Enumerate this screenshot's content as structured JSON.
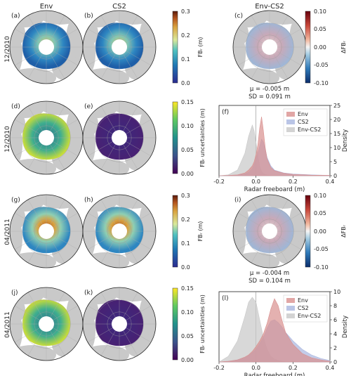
{
  "columns": {
    "env": "Env",
    "cs2": "CS2",
    "diff": "Env-CS2"
  },
  "rows": {
    "r1": "12/2010",
    "r2": "12/2010",
    "r3": "04/2011",
    "r4": "04/2011"
  },
  "panel_labels": {
    "a": "(a)",
    "b": "(b)",
    "c": "(c)",
    "d": "(d)",
    "e": "(e)",
    "f": "(f)",
    "g": "(g)",
    "h": "(h)",
    "i": "(i)",
    "j": "(j)",
    "k": "(k)",
    "l": "(l)"
  },
  "stats": {
    "c_mu": "μ = -0.005 m",
    "c_sd": "SD = 0.091 m",
    "i_mu": "μ = -0.004 m",
    "i_sd": "SD = 0.104 m"
  },
  "colorbars": {
    "fb": {
      "label": "FBᵣ (m)",
      "ticks": [
        "0.3",
        "0.2",
        "0.1",
        "0.0"
      ]
    },
    "unc": {
      "label": "FBᵣ uncertainties (m)",
      "ticks": [
        "0.15",
        "0.10",
        "0.05",
        "0.00"
      ]
    },
    "diff": {
      "label": "ΔFBᵣ",
      "ticks": [
        "0.10",
        "0.05",
        "0.00",
        "-0.05",
        "-0.10"
      ]
    }
  },
  "colors": {
    "env": "#d9908f",
    "cs2": "#a9b6e0",
    "diff": "#c8c8c8",
    "land": "#c9c9c9",
    "ocean": "#ffffff"
  },
  "chart_data": [
    {
      "type": "area",
      "panel": "(f)",
      "xlabel": "Radar freeboard (m)",
      "ylabel": "Density",
      "xlim": [
        -0.2,
        0.4
      ],
      "ylim": [
        0,
        25
      ],
      "xticks": [
        "-0.2",
        "0.0",
        "0.2",
        "0.4"
      ],
      "yticks": [
        "0",
        "5",
        "10",
        "15",
        "20",
        "25"
      ],
      "legend": [
        "Env",
        "CS2",
        "Env-CS2"
      ],
      "legend_position": "top-right",
      "x": [
        -0.2,
        -0.15,
        -0.1,
        -0.06,
        -0.04,
        -0.02,
        -0.01,
        0.0,
        0.01,
        0.02,
        0.03,
        0.04,
        0.05,
        0.06,
        0.08,
        0.1,
        0.15,
        0.2,
        0.3,
        0.4
      ],
      "series": [
        {
          "name": "Env",
          "values": [
            0,
            0.1,
            0.3,
            1.0,
            2.0,
            3.5,
            5.0,
            7.5,
            11,
            17,
            21,
            16,
            10,
            6,
            3,
            1.8,
            0.9,
            0.5,
            0.2,
            0.1
          ]
        },
        {
          "name": "CS2",
          "values": [
            0,
            0.1,
            0.2,
            0.6,
            1.2,
            2.5,
            4.0,
            6.0,
            8.0,
            10.5,
            13,
            12,
            9.5,
            6.5,
            3.5,
            2.0,
            1.0,
            0.6,
            0.3,
            0.1
          ]
        },
        {
          "name": "Env-CS2",
          "values": [
            0,
            0.3,
            2.0,
            8.0,
            14,
            18,
            16,
            12,
            7,
            3.5,
            1.5,
            0.8,
            0.4,
            0.2,
            0.1,
            0.05,
            0,
            0,
            0,
            0
          ]
        }
      ]
    },
    {
      "type": "area",
      "panel": "(l)",
      "xlabel": "Radar freeboard (m)",
      "ylabel": "Density",
      "xlim": [
        -0.2,
        0.4
      ],
      "ylim": [
        0,
        10
      ],
      "xticks": [
        "-0.2",
        "0.0",
        "0.2",
        "0.4"
      ],
      "yticks": [
        "0",
        "2",
        "4",
        "6",
        "8",
        "10"
      ],
      "legend": [
        "Env",
        "CS2",
        "Env-CS2"
      ],
      "legend_position": "top-right",
      "x": [
        -0.2,
        -0.15,
        -0.1,
        -0.06,
        -0.04,
        -0.02,
        0.0,
        0.02,
        0.04,
        0.06,
        0.08,
        0.1,
        0.12,
        0.14,
        0.16,
        0.2,
        0.25,
        0.3,
        0.35,
        0.4
      ],
      "series": [
        {
          "name": "Env",
          "values": [
            0,
            0.1,
            0.3,
            0.7,
            1.0,
            1.5,
            2.2,
            3.0,
            4.0,
            5.5,
            7.5,
            9.0,
            8.0,
            6.0,
            4.2,
            2.5,
            1.2,
            0.6,
            0.3,
            0.1
          ]
        },
        {
          "name": "CS2",
          "values": [
            0,
            0.1,
            0.3,
            0.6,
            0.9,
            1.3,
            1.8,
            2.6,
            3.5,
            4.8,
            5.8,
            6.0,
            5.6,
            5.0,
            4.2,
            3.0,
            1.8,
            1.0,
            0.5,
            0.2
          ]
        },
        {
          "name": "Env-CS2",
          "values": [
            0,
            0.8,
            3.0,
            6.5,
            8.5,
            9.2,
            8.5,
            6.0,
            3.5,
            1.8,
            0.8,
            0.4,
            0.2,
            0.1,
            0.05,
            0,
            0,
            0,
            0,
            0
          ]
        }
      ]
    }
  ]
}
